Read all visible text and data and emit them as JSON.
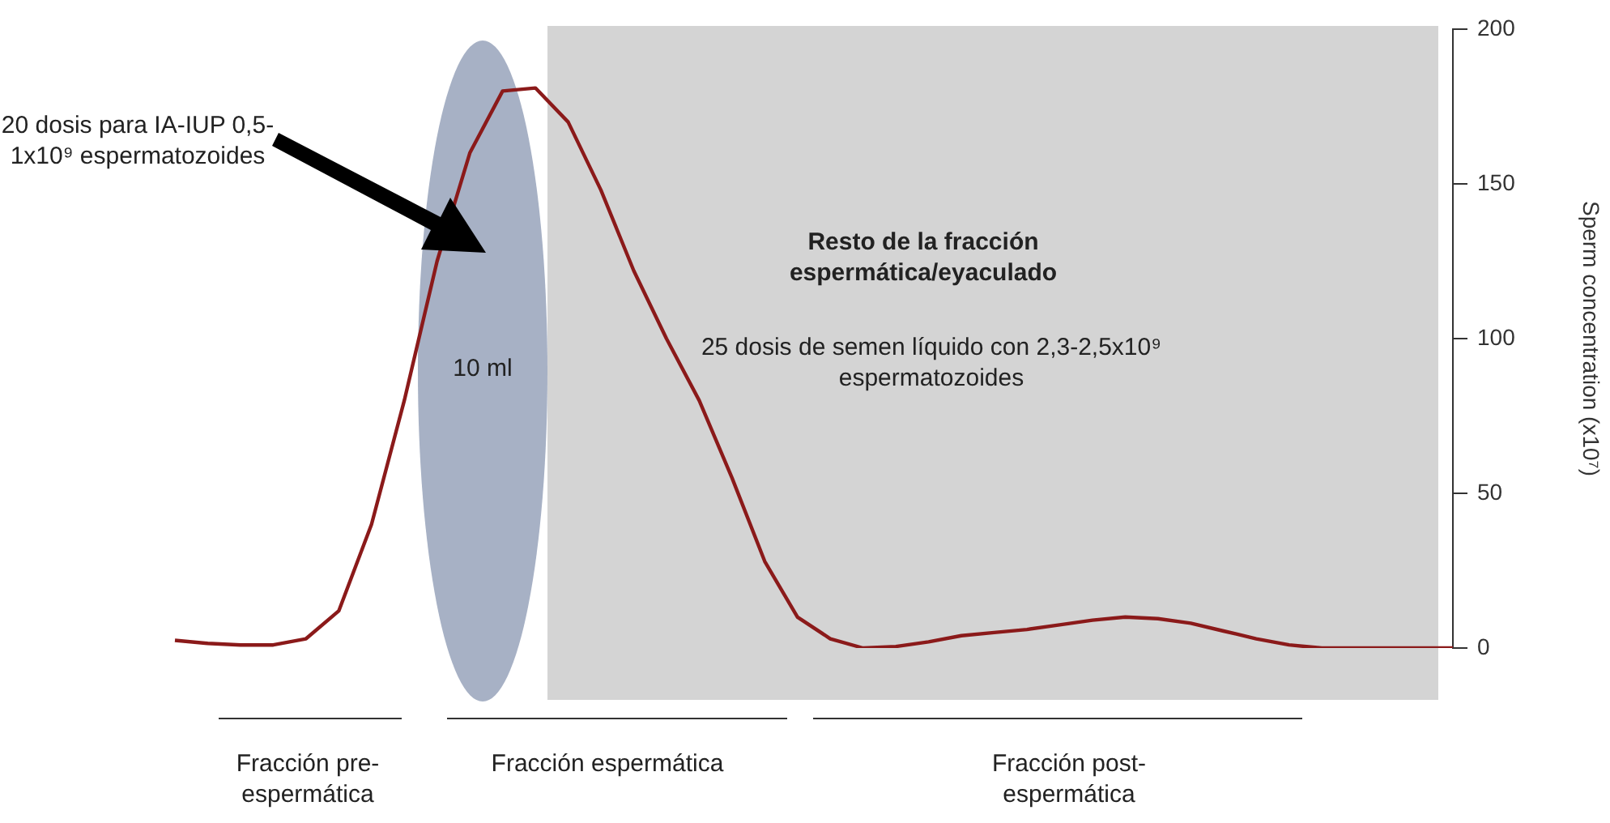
{
  "chart_data": {
    "type": "line",
    "ylabel": "Sperm concentration (x10⁷)",
    "categories": [
      null,
      null,
      null,
      null,
      null,
      null,
      null,
      null,
      null,
      null,
      null,
      null,
      null,
      null,
      null,
      null,
      null,
      null,
      null,
      null,
      null,
      null,
      null,
      null,
      null,
      null,
      null,
      null,
      null,
      null,
      null,
      null,
      null,
      null,
      null,
      null,
      null,
      null,
      null,
      null
    ],
    "series": [
      {
        "color": "#8b1a1a",
        "values": [
          2.5,
          1.5,
          1,
          1,
          3,
          12,
          40,
          80,
          125,
          160,
          180,
          181,
          170,
          148,
          122,
          100,
          80,
          55,
          28,
          10,
          3,
          0,
          0.5,
          2,
          4,
          5,
          6,
          7.5,
          9,
          10,
          9.5,
          8,
          5.5,
          3,
          1,
          0,
          0,
          0,
          0,
          0
        ]
      }
    ],
    "ylim": [
      0,
      200
    ],
    "yticks": [
      0,
      50,
      100,
      150,
      200
    ],
    "grid": false,
    "legend": false,
    "tick_labels": "y",
    "annotations": [
      "20 dosis para IA-IUP 0,5-1x10⁹ espermatozoides",
      "10 ml",
      "Resto de la fracción espermática/eyaculado",
      "25 dosis de semen líquido con 2,3-2,5x10⁹ espermatozoides",
      "Fracción pre-espermática",
      "Fracción espermática",
      "Fracción post-espermática"
    ]
  }
}
